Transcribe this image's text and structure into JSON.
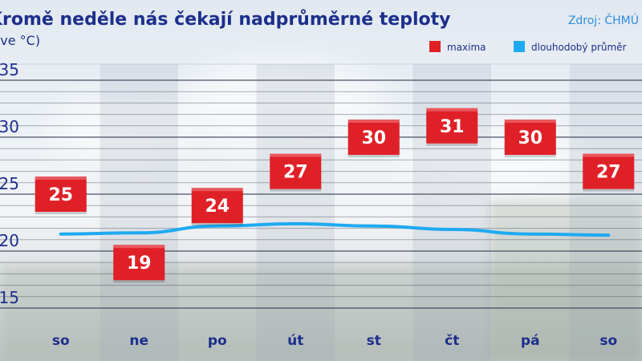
{
  "header": {
    "title": "Kromě neděle nás čekají nadprůměrné teploty",
    "subtitle": "(ve °C)",
    "source": "Zdroj: ČHMÚ"
  },
  "legend": {
    "maxima_label": "maxima",
    "average_label": "dlouhodobý průměr"
  },
  "colors": {
    "maxima": "#e02027",
    "average": "#1eaaf1",
    "title": "#1d2f8c",
    "source": "#2f8fe0"
  },
  "chart_data": {
    "type": "line",
    "title": "Kromě neděle nás čekají nadprůměrné teploty",
    "ylabel": "(ve °C)",
    "categories": [
      "so",
      "ne",
      "po",
      "út",
      "st",
      "čt",
      "pá",
      "so"
    ],
    "ylim": [
      15,
      35
    ],
    "yticks": [
      15,
      20,
      25,
      30,
      35
    ],
    "grid": true,
    "legend_position": "top-right",
    "series": [
      {
        "name": "maxima",
        "values": [
          25,
          19,
          24,
          27,
          30,
          31,
          30,
          27
        ]
      },
      {
        "name": "dlouhodobý průměr",
        "values": [
          21.5,
          21.6,
          22.2,
          22.4,
          22.2,
          21.9,
          21.5,
          21.4
        ]
      }
    ]
  }
}
